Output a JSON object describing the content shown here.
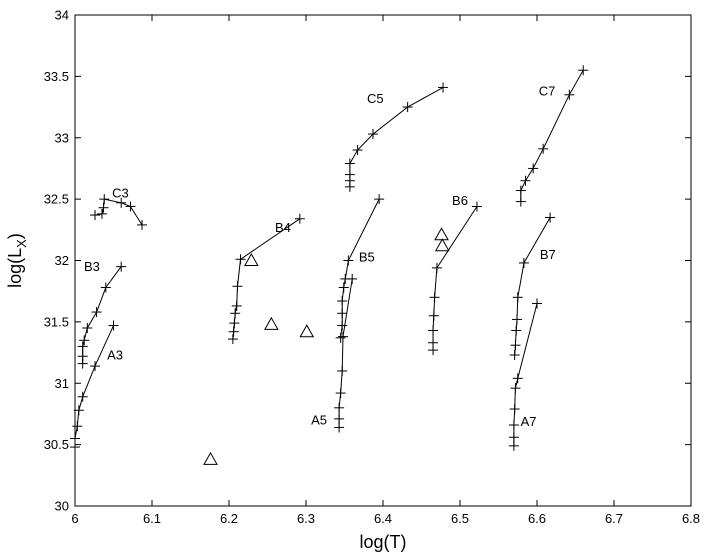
{
  "chart_data": {
    "type": "scatter",
    "xlabel": "log(T)",
    "ylabel": "log(L",
    "ylabel_sub": "X",
    "ylabel_close": ")",
    "xlim": [
      6.0,
      6.8
    ],
    "ylim": [
      30.0,
      34.0
    ],
    "grid": false,
    "legend": "none",
    "x_ticks": [
      6.0,
      6.1,
      6.2,
      6.3,
      6.4,
      6.5,
      6.6,
      6.7,
      6.8
    ],
    "x_tick_labels": [
      "6",
      "6.1",
      "6.2",
      "6.3",
      "6.4",
      "6.5",
      "6.6",
      "6.7",
      "6.8"
    ],
    "y_ticks": [
      30,
      30.5,
      31,
      31.5,
      32,
      32.5,
      33,
      33.5,
      34
    ],
    "y_tick_labels": [
      "30",
      "30.5",
      "31",
      "31.5",
      "32",
      "32.5",
      "33",
      "33.5",
      "34"
    ],
    "series": [
      {
        "name": "A3",
        "label_at": [
          6.052,
          31.23
        ],
        "points": [
          [
            6.0,
            30.48
          ],
          [
            6.0,
            30.55
          ],
          [
            6.003,
            30.65
          ],
          [
            6.005,
            30.78
          ],
          [
            6.01,
            30.89
          ],
          [
            6.026,
            31.14
          ],
          [
            6.05,
            31.47
          ]
        ]
      },
      {
        "name": "B3",
        "label_at": [
          6.022,
          31.95
        ],
        "points": [
          [
            6.01,
            31.16
          ],
          [
            6.01,
            31.22
          ],
          [
            6.01,
            31.3
          ],
          [
            6.012,
            31.35
          ],
          [
            6.016,
            31.45
          ],
          [
            6.028,
            31.58
          ],
          [
            6.04,
            31.78
          ],
          [
            6.06,
            31.95
          ]
        ]
      },
      {
        "name": "C3",
        "label_at": [
          6.059,
          32.55
        ],
        "points": [
          [
            6.026,
            32.37
          ],
          [
            6.035,
            32.38
          ],
          [
            6.037,
            32.43
          ],
          [
            6.038,
            32.5
          ],
          [
            6.06,
            32.47
          ],
          [
            6.072,
            32.44
          ],
          [
            6.087,
            32.29
          ]
        ]
      },
      {
        "name": "B4",
        "label_at": [
          6.27,
          32.27
        ],
        "points": [
          [
            6.205,
            31.36
          ],
          [
            6.206,
            31.42
          ],
          [
            6.207,
            31.49
          ],
          [
            6.208,
            31.57
          ],
          [
            6.21,
            31.63
          ],
          [
            6.211,
            31.79
          ],
          [
            6.215,
            32.01
          ],
          [
            6.292,
            32.34
          ]
        ]
      },
      {
        "name": "A5",
        "label_at": [
          6.317,
          30.7
        ],
        "points": [
          [
            6.343,
            30.64
          ],
          [
            6.343,
            30.71
          ],
          [
            6.343,
            30.8
          ],
          [
            6.345,
            30.92
          ],
          [
            6.347,
            31.1
          ],
          [
            6.348,
            31.38
          ],
          [
            6.36,
            31.85
          ]
        ]
      },
      {
        "name": "B5",
        "label_at": [
          6.379,
          32.03
        ],
        "points": [
          [
            6.345,
            31.37
          ],
          [
            6.347,
            31.47
          ],
          [
            6.347,
            31.57
          ],
          [
            6.347,
            31.67
          ],
          [
            6.349,
            31.78
          ],
          [
            6.351,
            31.85
          ],
          [
            6.355,
            32.0
          ],
          [
            6.395,
            32.5
          ]
        ]
      },
      {
        "name": "C5",
        "label_at": [
          6.39,
          33.32
        ],
        "points": [
          [
            6.357,
            32.6
          ],
          [
            6.357,
            32.65
          ],
          [
            6.357,
            32.7
          ],
          [
            6.357,
            32.79
          ],
          [
            6.367,
            32.9
          ],
          [
            6.387,
            33.03
          ],
          [
            6.432,
            33.25
          ],
          [
            6.478,
            33.41
          ]
        ]
      },
      {
        "name": "B6",
        "label_at": [
          6.5,
          32.49
        ],
        "points": [
          [
            6.465,
            31.27
          ],
          [
            6.465,
            31.33
          ],
          [
            6.465,
            31.43
          ],
          [
            6.466,
            31.55
          ],
          [
            6.467,
            31.7
          ],
          [
            6.47,
            31.94
          ],
          [
            6.522,
            32.44
          ]
        ]
      },
      {
        "name": "A7",
        "label_at": [
          6.589,
          30.69
        ],
        "points": [
          [
            6.57,
            30.49
          ],
          [
            6.57,
            30.56
          ],
          [
            6.57,
            30.66
          ],
          [
            6.571,
            30.79
          ],
          [
            6.572,
            30.96
          ],
          [
            6.575,
            31.04
          ],
          [
            6.6,
            31.65
          ]
        ]
      },
      {
        "name": "B7",
        "label_at": [
          6.614,
          32.05
        ],
        "points": [
          [
            6.571,
            31.23
          ],
          [
            6.572,
            31.31
          ],
          [
            6.573,
            31.43
          ],
          [
            6.574,
            31.52
          ],
          [
            6.575,
            31.7
          ],
          [
            6.583,
            31.98
          ],
          [
            6.617,
            32.35
          ]
        ]
      },
      {
        "name": "C7",
        "label_at": [
          6.613,
          33.38
        ],
        "points": [
          [
            6.579,
            32.48
          ],
          [
            6.579,
            32.57
          ],
          [
            6.585,
            32.65
          ],
          [
            6.595,
            32.75
          ],
          [
            6.608,
            32.91
          ],
          [
            6.642,
            33.35
          ],
          [
            6.66,
            33.55
          ]
        ]
      },
      {
        "name": "",
        "marker": "triangle",
        "connected": false,
        "points": [
          [
            6.176,
            30.38
          ],
          [
            6.229,
            32.0
          ],
          [
            6.255,
            31.48
          ],
          [
            6.301,
            31.42
          ],
          [
            6.476,
            32.21
          ],
          [
            6.477,
            32.12
          ]
        ]
      }
    ]
  }
}
